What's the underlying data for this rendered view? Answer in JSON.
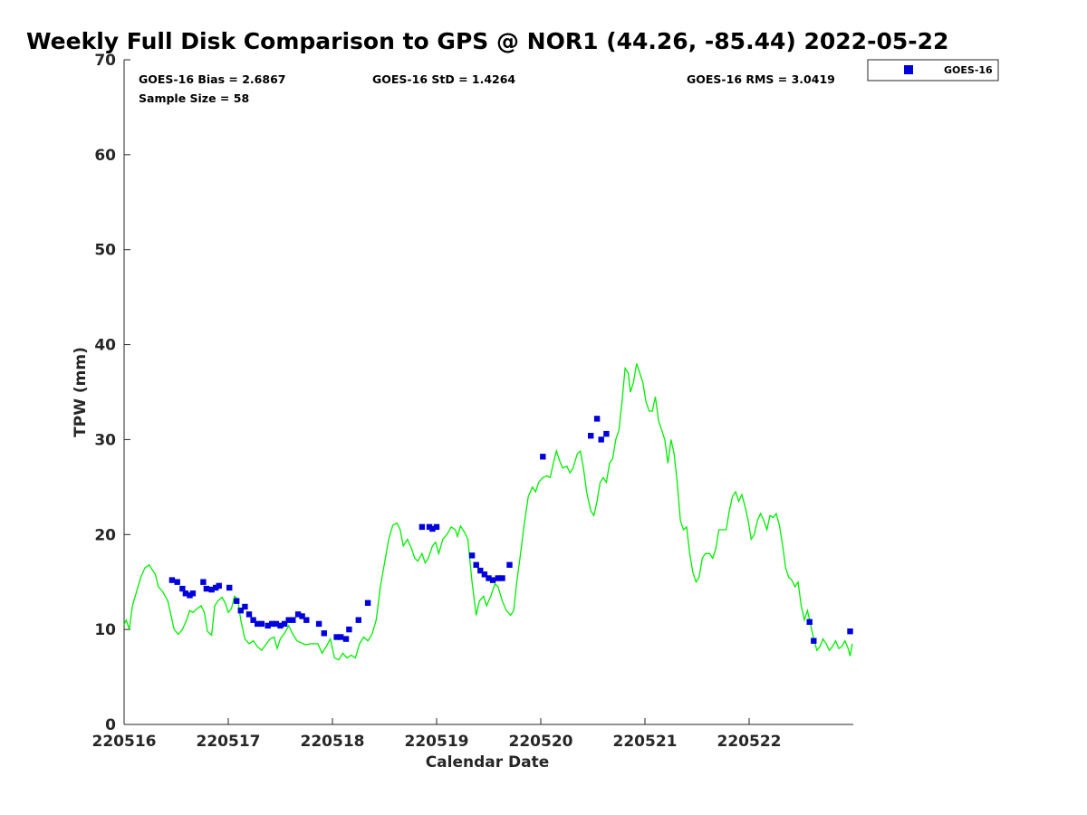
{
  "chart_data": {
    "type": "scatter",
    "title": "Weekly Full Disk Comparison to GPS @ NOR1 (44.26, -85.44) 2022-05-22",
    "xlabel": "Calendar Date",
    "ylabel": "TPW (mm)",
    "xlim": [
      0,
      7
    ],
    "ylim": [
      0,
      70
    ],
    "x_tick_labels": [
      "220516",
      "220517",
      "220518",
      "220519",
      "220520",
      "220521",
      "220522"
    ],
    "y_ticks": [
      0,
      10,
      20,
      30,
      40,
      50,
      60,
      70
    ],
    "grid": false,
    "legend_position": "top-right, outside plot",
    "stats": {
      "bias": "GOES-16 Bias = 2.6867",
      "std": "GOES-16 StD = 1.4264",
      "rms": "GOES-16 RMS = 3.0419",
      "sample_size": "Sample Size = 58"
    },
    "colors": {
      "goes": "#0000dd",
      "gps": "#00ee00",
      "axis": "#262626"
    },
    "series": [
      {
        "name": "GOES-16",
        "marker": "square",
        "points": [
          [
            0.46,
            15.2
          ],
          [
            0.51,
            15.0
          ],
          [
            0.56,
            14.3
          ],
          [
            0.59,
            13.8
          ],
          [
            0.63,
            13.6
          ],
          [
            0.66,
            13.8
          ],
          [
            0.76,
            15.0
          ],
          [
            0.79,
            14.3
          ],
          [
            0.84,
            14.2
          ],
          [
            0.88,
            14.4
          ],
          [
            0.91,
            14.6
          ],
          [
            1.01,
            14.4
          ],
          [
            1.08,
            13.0
          ],
          [
            1.12,
            12.0
          ],
          [
            1.16,
            12.4
          ],
          [
            1.2,
            11.6
          ],
          [
            1.24,
            11.0
          ],
          [
            1.28,
            10.6
          ],
          [
            1.32,
            10.6
          ],
          [
            1.38,
            10.4
          ],
          [
            1.42,
            10.6
          ],
          [
            1.46,
            10.6
          ],
          [
            1.5,
            10.4
          ],
          [
            1.54,
            10.6
          ],
          [
            1.58,
            11.0
          ],
          [
            1.62,
            11.0
          ],
          [
            1.67,
            11.6
          ],
          [
            1.71,
            11.4
          ],
          [
            1.75,
            11.0
          ],
          [
            1.87,
            10.6
          ],
          [
            1.92,
            9.6
          ],
          [
            2.04,
            9.2
          ],
          [
            2.08,
            9.2
          ],
          [
            2.13,
            9.0
          ],
          [
            2.16,
            10.0
          ],
          [
            2.25,
            11.0
          ],
          [
            2.34,
            12.8
          ],
          [
            2.86,
            20.8
          ],
          [
            2.93,
            20.8
          ],
          [
            2.96,
            20.6
          ],
          [
            3.0,
            20.8
          ],
          [
            3.34,
            17.8
          ],
          [
            3.38,
            16.8
          ],
          [
            3.42,
            16.2
          ],
          [
            3.46,
            15.8
          ],
          [
            3.5,
            15.4
          ],
          [
            3.54,
            15.2
          ],
          [
            3.59,
            15.4
          ],
          [
            3.63,
            15.4
          ],
          [
            3.7,
            16.8
          ],
          [
            4.02,
            28.2
          ],
          [
            4.48,
            30.4
          ],
          [
            4.54,
            32.2
          ],
          [
            4.58,
            30.0
          ],
          [
            4.63,
            30.6
          ],
          [
            6.58,
            10.8
          ],
          [
            6.62,
            8.8
          ],
          [
            6.97,
            9.8
          ]
        ]
      },
      {
        "name": "GPS",
        "points": [
          [
            0.0,
            10.5
          ],
          [
            0.02,
            11.0
          ],
          [
            0.05,
            10.0
          ],
          [
            0.08,
            12.5
          ],
          [
            0.12,
            14.0
          ],
          [
            0.16,
            15.5
          ],
          [
            0.2,
            16.5
          ],
          [
            0.24,
            16.8
          ],
          [
            0.27,
            16.3
          ],
          [
            0.3,
            15.8
          ],
          [
            0.33,
            14.5
          ],
          [
            0.37,
            14.0
          ],
          [
            0.42,
            13.0
          ],
          [
            0.45,
            11.5
          ],
          [
            0.48,
            10.0
          ],
          [
            0.52,
            9.5
          ],
          [
            0.56,
            10.0
          ],
          [
            0.6,
            11.0
          ],
          [
            0.63,
            12.0
          ],
          [
            0.66,
            11.8
          ],
          [
            0.7,
            12.2
          ],
          [
            0.74,
            12.5
          ],
          [
            0.77,
            11.8
          ],
          [
            0.8,
            9.8
          ],
          [
            0.84,
            9.4
          ],
          [
            0.87,
            12.5
          ],
          [
            0.9,
            13.0
          ],
          [
            0.94,
            13.4
          ],
          [
            0.97,
            12.8
          ],
          [
            1.0,
            11.8
          ],
          [
            1.03,
            12.2
          ],
          [
            1.06,
            13.5
          ],
          [
            1.09,
            13.2
          ],
          [
            1.12,
            11.0
          ],
          [
            1.16,
            9.0
          ],
          [
            1.2,
            8.5
          ],
          [
            1.24,
            8.8
          ],
          [
            1.28,
            8.2
          ],
          [
            1.32,
            7.8
          ],
          [
            1.36,
            8.4
          ],
          [
            1.4,
            9.0
          ],
          [
            1.44,
            9.2
          ],
          [
            1.47,
            8.0
          ],
          [
            1.5,
            9.0
          ],
          [
            1.54,
            9.6
          ],
          [
            1.58,
            10.4
          ],
          [
            1.62,
            9.5
          ],
          [
            1.66,
            8.8
          ],
          [
            1.7,
            8.6
          ],
          [
            1.74,
            8.4
          ],
          [
            1.8,
            8.5
          ],
          [
            1.86,
            8.5
          ],
          [
            1.9,
            7.5
          ],
          [
            1.94,
            8.2
          ],
          [
            1.98,
            9.0
          ],
          [
            2.02,
            7.0
          ],
          [
            2.06,
            6.8
          ],
          [
            2.1,
            7.5
          ],
          [
            2.14,
            7.0
          ],
          [
            2.18,
            7.3
          ],
          [
            2.22,
            7.0
          ],
          [
            2.26,
            8.5
          ],
          [
            2.3,
            9.2
          ],
          [
            2.34,
            8.8
          ],
          [
            2.38,
            9.5
          ],
          [
            2.42,
            11.0
          ],
          [
            2.46,
            14.5
          ],
          [
            2.5,
            17.0
          ],
          [
            2.54,
            19.5
          ],
          [
            2.58,
            21.0
          ],
          [
            2.62,
            21.2
          ],
          [
            2.65,
            20.5
          ],
          [
            2.68,
            18.8
          ],
          [
            2.72,
            19.5
          ],
          [
            2.76,
            18.5
          ],
          [
            2.79,
            17.5
          ],
          [
            2.82,
            17.2
          ],
          [
            2.86,
            18.0
          ],
          [
            2.89,
            17.0
          ],
          [
            2.92,
            17.5
          ],
          [
            2.96,
            18.8
          ],
          [
            2.99,
            19.2
          ],
          [
            3.02,
            18.0
          ],
          [
            3.06,
            19.5
          ],
          [
            3.1,
            20.0
          ],
          [
            3.14,
            20.8
          ],
          [
            3.18,
            20.5
          ],
          [
            3.2,
            19.8
          ],
          [
            3.23,
            20.9
          ],
          [
            3.27,
            20.2
          ],
          [
            3.3,
            19.5
          ],
          [
            3.34,
            15.0
          ],
          [
            3.38,
            11.5
          ],
          [
            3.41,
            13.0
          ],
          [
            3.45,
            13.5
          ],
          [
            3.48,
            12.5
          ],
          [
            3.52,
            13.5
          ],
          [
            3.56,
            14.8
          ],
          [
            3.59,
            14.5
          ],
          [
            3.63,
            13.0
          ],
          [
            3.67,
            12.0
          ],
          [
            3.71,
            11.5
          ],
          [
            3.74,
            12.0
          ],
          [
            3.77,
            15.0
          ],
          [
            3.8,
            17.5
          ],
          [
            3.84,
            21.0
          ],
          [
            3.88,
            24.0
          ],
          [
            3.92,
            25.0
          ],
          [
            3.95,
            24.5
          ],
          [
            3.98,
            25.5
          ],
          [
            4.02,
            26.0
          ],
          [
            4.06,
            26.2
          ],
          [
            4.09,
            26.0
          ],
          [
            4.12,
            27.5
          ],
          [
            4.15,
            28.8
          ],
          [
            4.18,
            27.8
          ],
          [
            4.21,
            27.0
          ],
          [
            4.25,
            27.2
          ],
          [
            4.28,
            26.5
          ],
          [
            4.31,
            27.0
          ],
          [
            4.35,
            28.5
          ],
          [
            4.38,
            28.8
          ],
          [
            4.41,
            27.0
          ],
          [
            4.44,
            24.5
          ],
          [
            4.48,
            22.5
          ],
          [
            4.51,
            22.0
          ],
          [
            4.54,
            23.5
          ],
          [
            4.57,
            25.5
          ],
          [
            4.6,
            26.0
          ],
          [
            4.63,
            25.5
          ],
          [
            4.66,
            27.5
          ],
          [
            4.69,
            28.0
          ],
          [
            4.72,
            30.0
          ],
          [
            4.75,
            31.0
          ],
          [
            4.78,
            34.0
          ],
          [
            4.81,
            37.5
          ],
          [
            4.84,
            37.0
          ],
          [
            4.86,
            35.0
          ],
          [
            4.89,
            36.0
          ],
          [
            4.92,
            38.0
          ],
          [
            4.95,
            37.0
          ],
          [
            4.98,
            36.0
          ],
          [
            5.01,
            34.0
          ],
          [
            5.04,
            33.0
          ],
          [
            5.07,
            33.0
          ],
          [
            5.1,
            34.5
          ],
          [
            5.13,
            32.0
          ],
          [
            5.16,
            31.0
          ],
          [
            5.19,
            30.0
          ],
          [
            5.22,
            27.5
          ],
          [
            5.25,
            30.0
          ],
          [
            5.28,
            28.5
          ],
          [
            5.31,
            25.5
          ],
          [
            5.34,
            21.5
          ],
          [
            5.37,
            20.5
          ],
          [
            5.4,
            20.8
          ],
          [
            5.43,
            18.0
          ],
          [
            5.46,
            16.0
          ],
          [
            5.49,
            15.0
          ],
          [
            5.52,
            15.5
          ],
          [
            5.55,
            17.5
          ],
          [
            5.58,
            18.0
          ],
          [
            5.62,
            18.0
          ],
          [
            5.65,
            17.5
          ],
          [
            5.68,
            18.5
          ],
          [
            5.71,
            20.5
          ],
          [
            5.75,
            20.5
          ],
          [
            5.78,
            20.5
          ],
          [
            5.81,
            22.5
          ],
          [
            5.84,
            24.0
          ],
          [
            5.87,
            24.5
          ],
          [
            5.9,
            23.5
          ],
          [
            5.93,
            24.2
          ],
          [
            5.96,
            23.0
          ],
          [
            5.99,
            21.5
          ],
          [
            6.02,
            19.5
          ],
          [
            6.05,
            20.0
          ],
          [
            6.08,
            21.5
          ],
          [
            6.11,
            22.2
          ],
          [
            6.14,
            21.5
          ],
          [
            6.17,
            20.5
          ],
          [
            6.2,
            22.0
          ],
          [
            6.23,
            21.8
          ],
          [
            6.26,
            22.2
          ],
          [
            6.29,
            21.0
          ],
          [
            6.32,
            19.0
          ],
          [
            6.35,
            16.5
          ],
          [
            6.38,
            15.5
          ],
          [
            6.41,
            15.2
          ],
          [
            6.44,
            14.5
          ],
          [
            6.47,
            15.0
          ],
          [
            6.5,
            12.5
          ],
          [
            6.53,
            11.0
          ],
          [
            6.56,
            12.0
          ],
          [
            6.59,
            10.5
          ],
          [
            6.62,
            9.0
          ],
          [
            6.65,
            7.8
          ],
          [
            6.68,
            8.2
          ],
          [
            6.71,
            9.0
          ],
          [
            6.74,
            8.5
          ],
          [
            6.77,
            7.8
          ],
          [
            6.8,
            8.2
          ],
          [
            6.83,
            8.8
          ],
          [
            6.86,
            8.0
          ],
          [
            6.89,
            8.2
          ],
          [
            6.92,
            8.8
          ],
          [
            6.95,
            8.0
          ],
          [
            6.97,
            7.2
          ],
          [
            6.99,
            8.5
          ]
        ]
      }
    ]
  }
}
